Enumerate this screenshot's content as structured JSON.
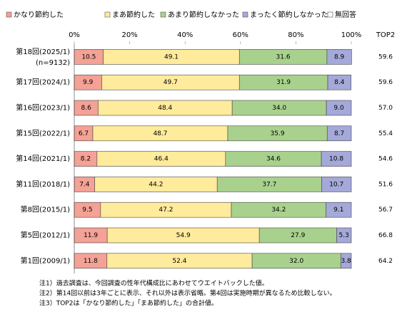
{
  "chart_data": {
    "type": "stacked-bar-horizontal",
    "categories": [
      "第18回(2025/1)",
      "第17回(2024/1)",
      "第16回(2023/1)",
      "第15回(2022/1)",
      "第14回(2021/1)",
      "第11回(2018/1)",
      "第8回(2015/1)",
      "第5回(2012/1)",
      "第1回(2009/1)"
    ],
    "sample_note": "(n=9132)",
    "series": [
      {
        "name": "かなり節約した",
        "color": "#f4a196",
        "values": [
          10.5,
          9.9,
          8.6,
          6.7,
          8.2,
          7.4,
          9.5,
          11.9,
          11.8
        ],
        "value_labels": [
          "10.5",
          "9.9",
          "8.6",
          "6.7",
          "8.2",
          "7.4",
          "9.5",
          "11.9",
          "11.8"
        ]
      },
      {
        "name": "まあ節約した",
        "color": "#ffeb9c",
        "values": [
          49.1,
          49.7,
          48.4,
          48.7,
          46.4,
          44.2,
          47.2,
          54.9,
          52.4
        ],
        "value_labels": [
          "49.1",
          "49.7",
          "48.4",
          "48.7",
          "46.4",
          "44.2",
          "47.2",
          "54.9",
          "52.4"
        ]
      },
      {
        "name": "あまり節約しなかった",
        "color": "#a9d18e",
        "values": [
          31.6,
          31.9,
          34.0,
          35.9,
          34.6,
          37.7,
          34.2,
          27.9,
          32.0
        ],
        "value_labels": [
          "31.6",
          "31.9",
          "34.0",
          "35.9",
          "34.6",
          "37.7",
          "34.2",
          "27.9",
          "32.0"
        ]
      },
      {
        "name": "まったく節約しなかった",
        "color": "#a4a9d9",
        "values": [
          8.9,
          8.4,
          9.0,
          8.7,
          10.8,
          10.7,
          9.1,
          5.3,
          3.8
        ],
        "value_labels": [
          "8.9",
          "8.4",
          "9.0",
          "8.7",
          "10.8",
          "10.7",
          "9.1",
          "5.3",
          "3.8"
        ]
      },
      {
        "name": "無回答",
        "color": "#ffffff",
        "values": [
          0,
          0,
          0,
          0,
          0,
          0,
          0,
          0,
          0
        ]
      }
    ],
    "top2": {
      "header": "TOP2",
      "values": [
        59.6,
        59.6,
        57.0,
        55.4,
        54.6,
        51.6,
        56.7,
        66.8,
        64.2
      ],
      "value_labels": [
        "59.6",
        "59.6",
        "57.0",
        "55.4",
        "54.6",
        "51.6",
        "56.7",
        "66.8",
        "64.2"
      ]
    },
    "xlim": [
      0,
      100
    ],
    "xticks": [
      {
        "value": 0,
        "label": "0%"
      },
      {
        "value": 20,
        "label": "20%"
      },
      {
        "value": 40,
        "label": "40%"
      },
      {
        "value": 60,
        "label": "60%"
      },
      {
        "value": 80,
        "label": "80%"
      },
      {
        "value": 100,
        "label": "100%"
      }
    ],
    "notes": [
      "注1）過去調査は、今回調査の性年代構成比にあわせてウエイトバックした値。",
      "注2）第14回以前は3年ごとに表示、それ以外は表示省略。第4回は実施時期が異なるため比較しない。",
      "注3）TOP2は「かなり節約した」「まあ節約した」の合計値。"
    ]
  }
}
